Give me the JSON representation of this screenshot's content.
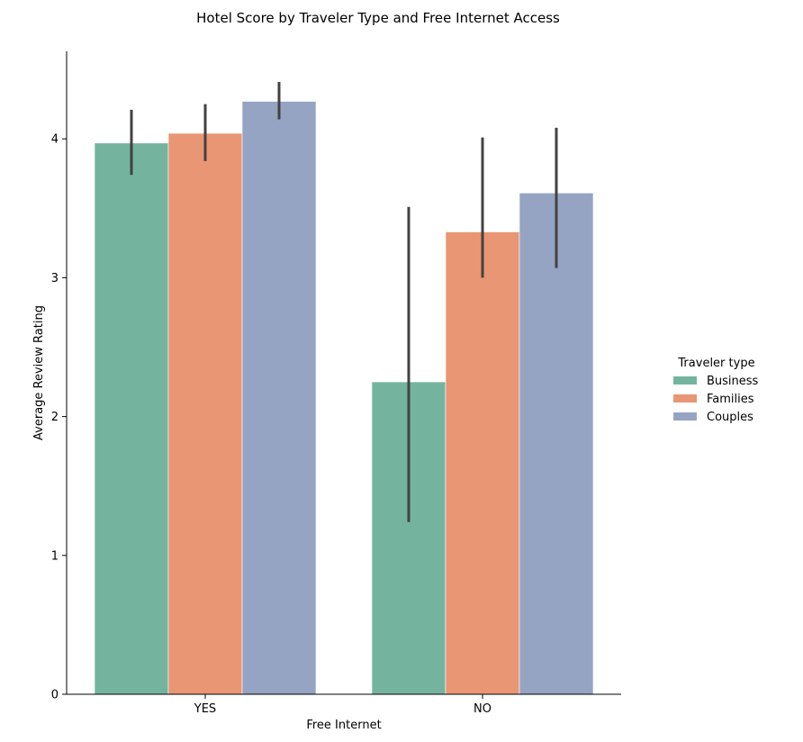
{
  "chart_data": {
    "type": "bar",
    "title": "Hotel Score by Traveler Type and Free Internet Access",
    "xlabel": "Free Internet",
    "ylabel": "Average Review Rating",
    "categories": [
      "YES",
      "NO"
    ],
    "ylim": [
      0,
      4.65
    ],
    "yticks": [
      0,
      1,
      2,
      3,
      4
    ],
    "grid": false,
    "legend": {
      "title": "Traveler type",
      "placement": "right"
    },
    "series": [
      {
        "name": "Business",
        "color": "#74b49f",
        "values": [
          3.97,
          2.25
        ],
        "ci_low": [
          3.74,
          1.24
        ],
        "ci_high": [
          4.21,
          3.51
        ]
      },
      {
        "name": "Families",
        "color": "#e89673",
        "values": [
          4.04,
          3.33
        ],
        "ci_low": [
          3.84,
          3.0
        ],
        "ci_high": [
          4.25,
          4.01
        ]
      },
      {
        "name": "Couples",
        "color": "#95a4c3",
        "values": [
          4.27,
          3.61
        ],
        "ci_low": [
          4.14,
          3.07
        ],
        "ci_high": [
          4.41,
          4.08
        ]
      }
    ]
  }
}
